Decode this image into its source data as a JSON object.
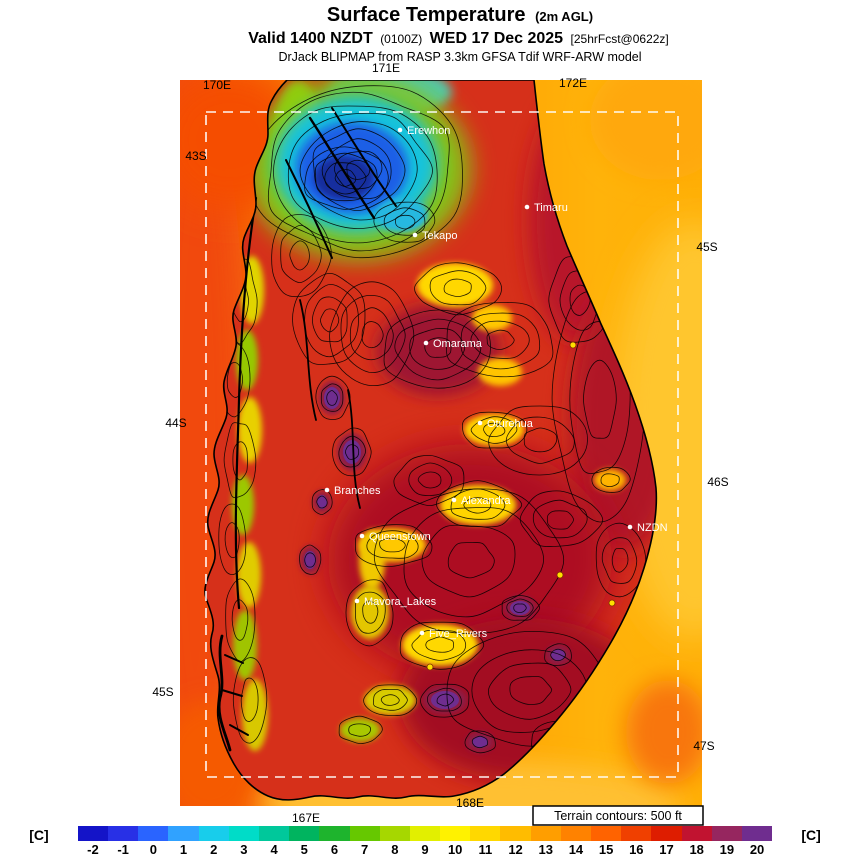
{
  "header": {
    "title": "Surface Temperature",
    "title_note": "(2m AGL)",
    "valid": {
      "prefix": "Valid 1400 NZDT",
      "zulu": "(0100Z)",
      "date": "WED 17 Dec 2025",
      "fcst": "[25hrFcst@0622z]"
    },
    "model_line": "DrJack BLIPMAP from RASP 3.3km GFSA Tdif WRF-ARW model"
  },
  "map": {
    "grid_labels": {
      "top": [
        "170E",
        "171E",
        "172E"
      ],
      "left": [
        "43S",
        "44S",
        "45S"
      ],
      "right": [
        "45S",
        "46S",
        "47S"
      ],
      "bottom": [
        "167E",
        "168E"
      ]
    },
    "sites": [
      {
        "name": "Erewhon"
      },
      {
        "name": "Timaru"
      },
      {
        "name": "Tekapo"
      },
      {
        "name": "Omarama"
      },
      {
        "name": "Oturehua"
      },
      {
        "name": "Branches"
      },
      {
        "name": "Alexandra"
      },
      {
        "name": "NZDN"
      },
      {
        "name": "Queenstown"
      },
      {
        "name": "Mavora_Lakes"
      },
      {
        "name": "Five_Rivers"
      }
    ],
    "terrain_note": "Terrain contours: 500 ft"
  },
  "colorbar": {
    "unit_left": "[C]",
    "unit_right": "[C]",
    "ticks": [
      "-2",
      "-1",
      "0",
      "1",
      "2",
      "3",
      "4",
      "5",
      "6",
      "7",
      "8",
      "9",
      "10",
      "11",
      "12",
      "13",
      "14",
      "15",
      "16",
      "17",
      "18",
      "19",
      "20"
    ],
    "colors": [
      "#1414c8",
      "#2830e6",
      "#2a64ff",
      "#30a2ff",
      "#18cdeb",
      "#00dcc8",
      "#00c89b",
      "#00b45f",
      "#1eb42d",
      "#66c800",
      "#a6d700",
      "#e2ef00",
      "#fff200",
      "#ffd800",
      "#ffbc00",
      "#ff9e00",
      "#ff8200",
      "#ff6300",
      "#f04000",
      "#de1d00",
      "#c11330",
      "#96265f",
      "#6f2d8f"
    ]
  }
}
